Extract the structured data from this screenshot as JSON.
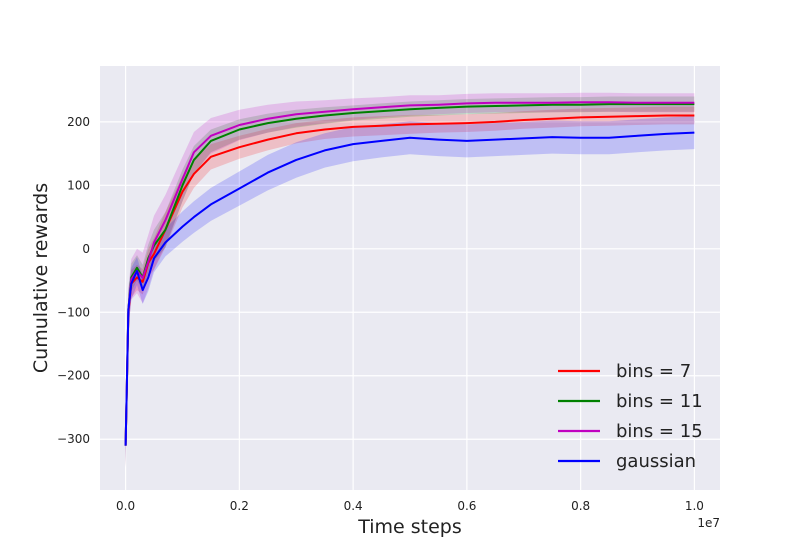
{
  "colors": {
    "plot_background": "#EAEAF2",
    "grid": "#FFFFFF",
    "page_background": "#FFFFFF"
  },
  "chart_data": {
    "type": "line",
    "title": "",
    "xlabel": "Time steps",
    "ylabel": "Cumulative rewards",
    "x_multiplier_label": "1e7",
    "x_axis_multiplier": 10000000,
    "xlim": [
      -0.045,
      1.045
    ],
    "ylim": [
      -380,
      288
    ],
    "x_ticks": [
      0.0,
      0.2,
      0.4,
      0.6,
      0.8,
      1.0
    ],
    "x_tick_labels": [
      "0.0",
      "0.2",
      "0.4",
      "0.6",
      "0.8",
      "1.0"
    ],
    "y_ticks": [
      -300,
      -200,
      -100,
      0,
      100,
      200
    ],
    "y_tick_labels": [
      "−300",
      "−200",
      "−100",
      "0",
      "100",
      "200"
    ],
    "grid": true,
    "legend_position": "lower-right",
    "x": [
      0.0,
      0.005,
      0.01,
      0.02,
      0.03,
      0.04,
      0.05,
      0.07,
      0.1,
      0.12,
      0.15,
      0.2,
      0.25,
      0.3,
      0.35,
      0.4,
      0.45,
      0.5,
      0.55,
      0.6,
      0.65,
      0.7,
      0.75,
      0.8,
      0.85,
      0.9,
      0.95,
      1.0
    ],
    "series": [
      {
        "name": "bins = 7",
        "color": "#FF0000",
        "values": [
          -310,
          -100,
          -55,
          -45,
          -52,
          -22,
          -8,
          30,
          90,
          118,
          145,
          160,
          172,
          182,
          188,
          192,
          194,
          196,
          197,
          198,
          200,
          203,
          205,
          207,
          208,
          209,
          210,
          210
        ],
        "band": [
          35,
          28,
          22,
          20,
          20,
          22,
          25,
          28,
          25,
          22,
          20,
          18,
          17,
          16,
          15,
          15,
          15,
          15,
          14,
          14,
          14,
          14,
          14,
          14,
          14,
          14,
          14,
          14
        ]
      },
      {
        "name": "bins = 11",
        "color": "#008000",
        "values": [
          -310,
          -95,
          -45,
          -30,
          -45,
          -15,
          5,
          30,
          100,
          140,
          170,
          188,
          198,
          205,
          210,
          214,
          217,
          220,
          222,
          224,
          225,
          226,
          227,
          227,
          228,
          228,
          228,
          228
        ],
        "band": [
          35,
          28,
          22,
          20,
          20,
          22,
          25,
          28,
          25,
          22,
          18,
          16,
          15,
          14,
          13,
          12,
          12,
          12,
          12,
          12,
          12,
          12,
          12,
          12,
          12,
          12,
          12,
          12
        ]
      },
      {
        "name": "bins = 15",
        "color": "#C000C0",
        "values": [
          -310,
          -95,
          -48,
          -35,
          -46,
          -20,
          10,
          45,
          110,
          152,
          178,
          195,
          205,
          212,
          216,
          220,
          223,
          226,
          227,
          229,
          230,
          230,
          230,
          231,
          231,
          230,
          230,
          230
        ],
        "band": [
          35,
          35,
          32,
          35,
          40,
          42,
          42,
          40,
          35,
          32,
          28,
          24,
          22,
          20,
          18,
          17,
          16,
          16,
          15,
          15,
          15,
          15,
          15,
          15,
          15,
          15,
          15,
          15
        ]
      },
      {
        "name": "gaussian",
        "color": "#0000FF",
        "values": [
          -310,
          -95,
          -55,
          -35,
          -65,
          -45,
          -15,
          10,
          35,
          50,
          70,
          95,
          120,
          140,
          155,
          165,
          170,
          175,
          172,
          170,
          172,
          174,
          176,
          175,
          175,
          178,
          181,
          183
        ],
        "band": [
          35,
          30,
          25,
          22,
          22,
          22,
          22,
          22,
          24,
          25,
          26,
          27,
          28,
          28,
          27,
          27,
          26,
          26,
          26,
          26,
          26,
          26,
          26,
          26,
          26,
          26,
          26,
          26
        ]
      }
    ]
  }
}
